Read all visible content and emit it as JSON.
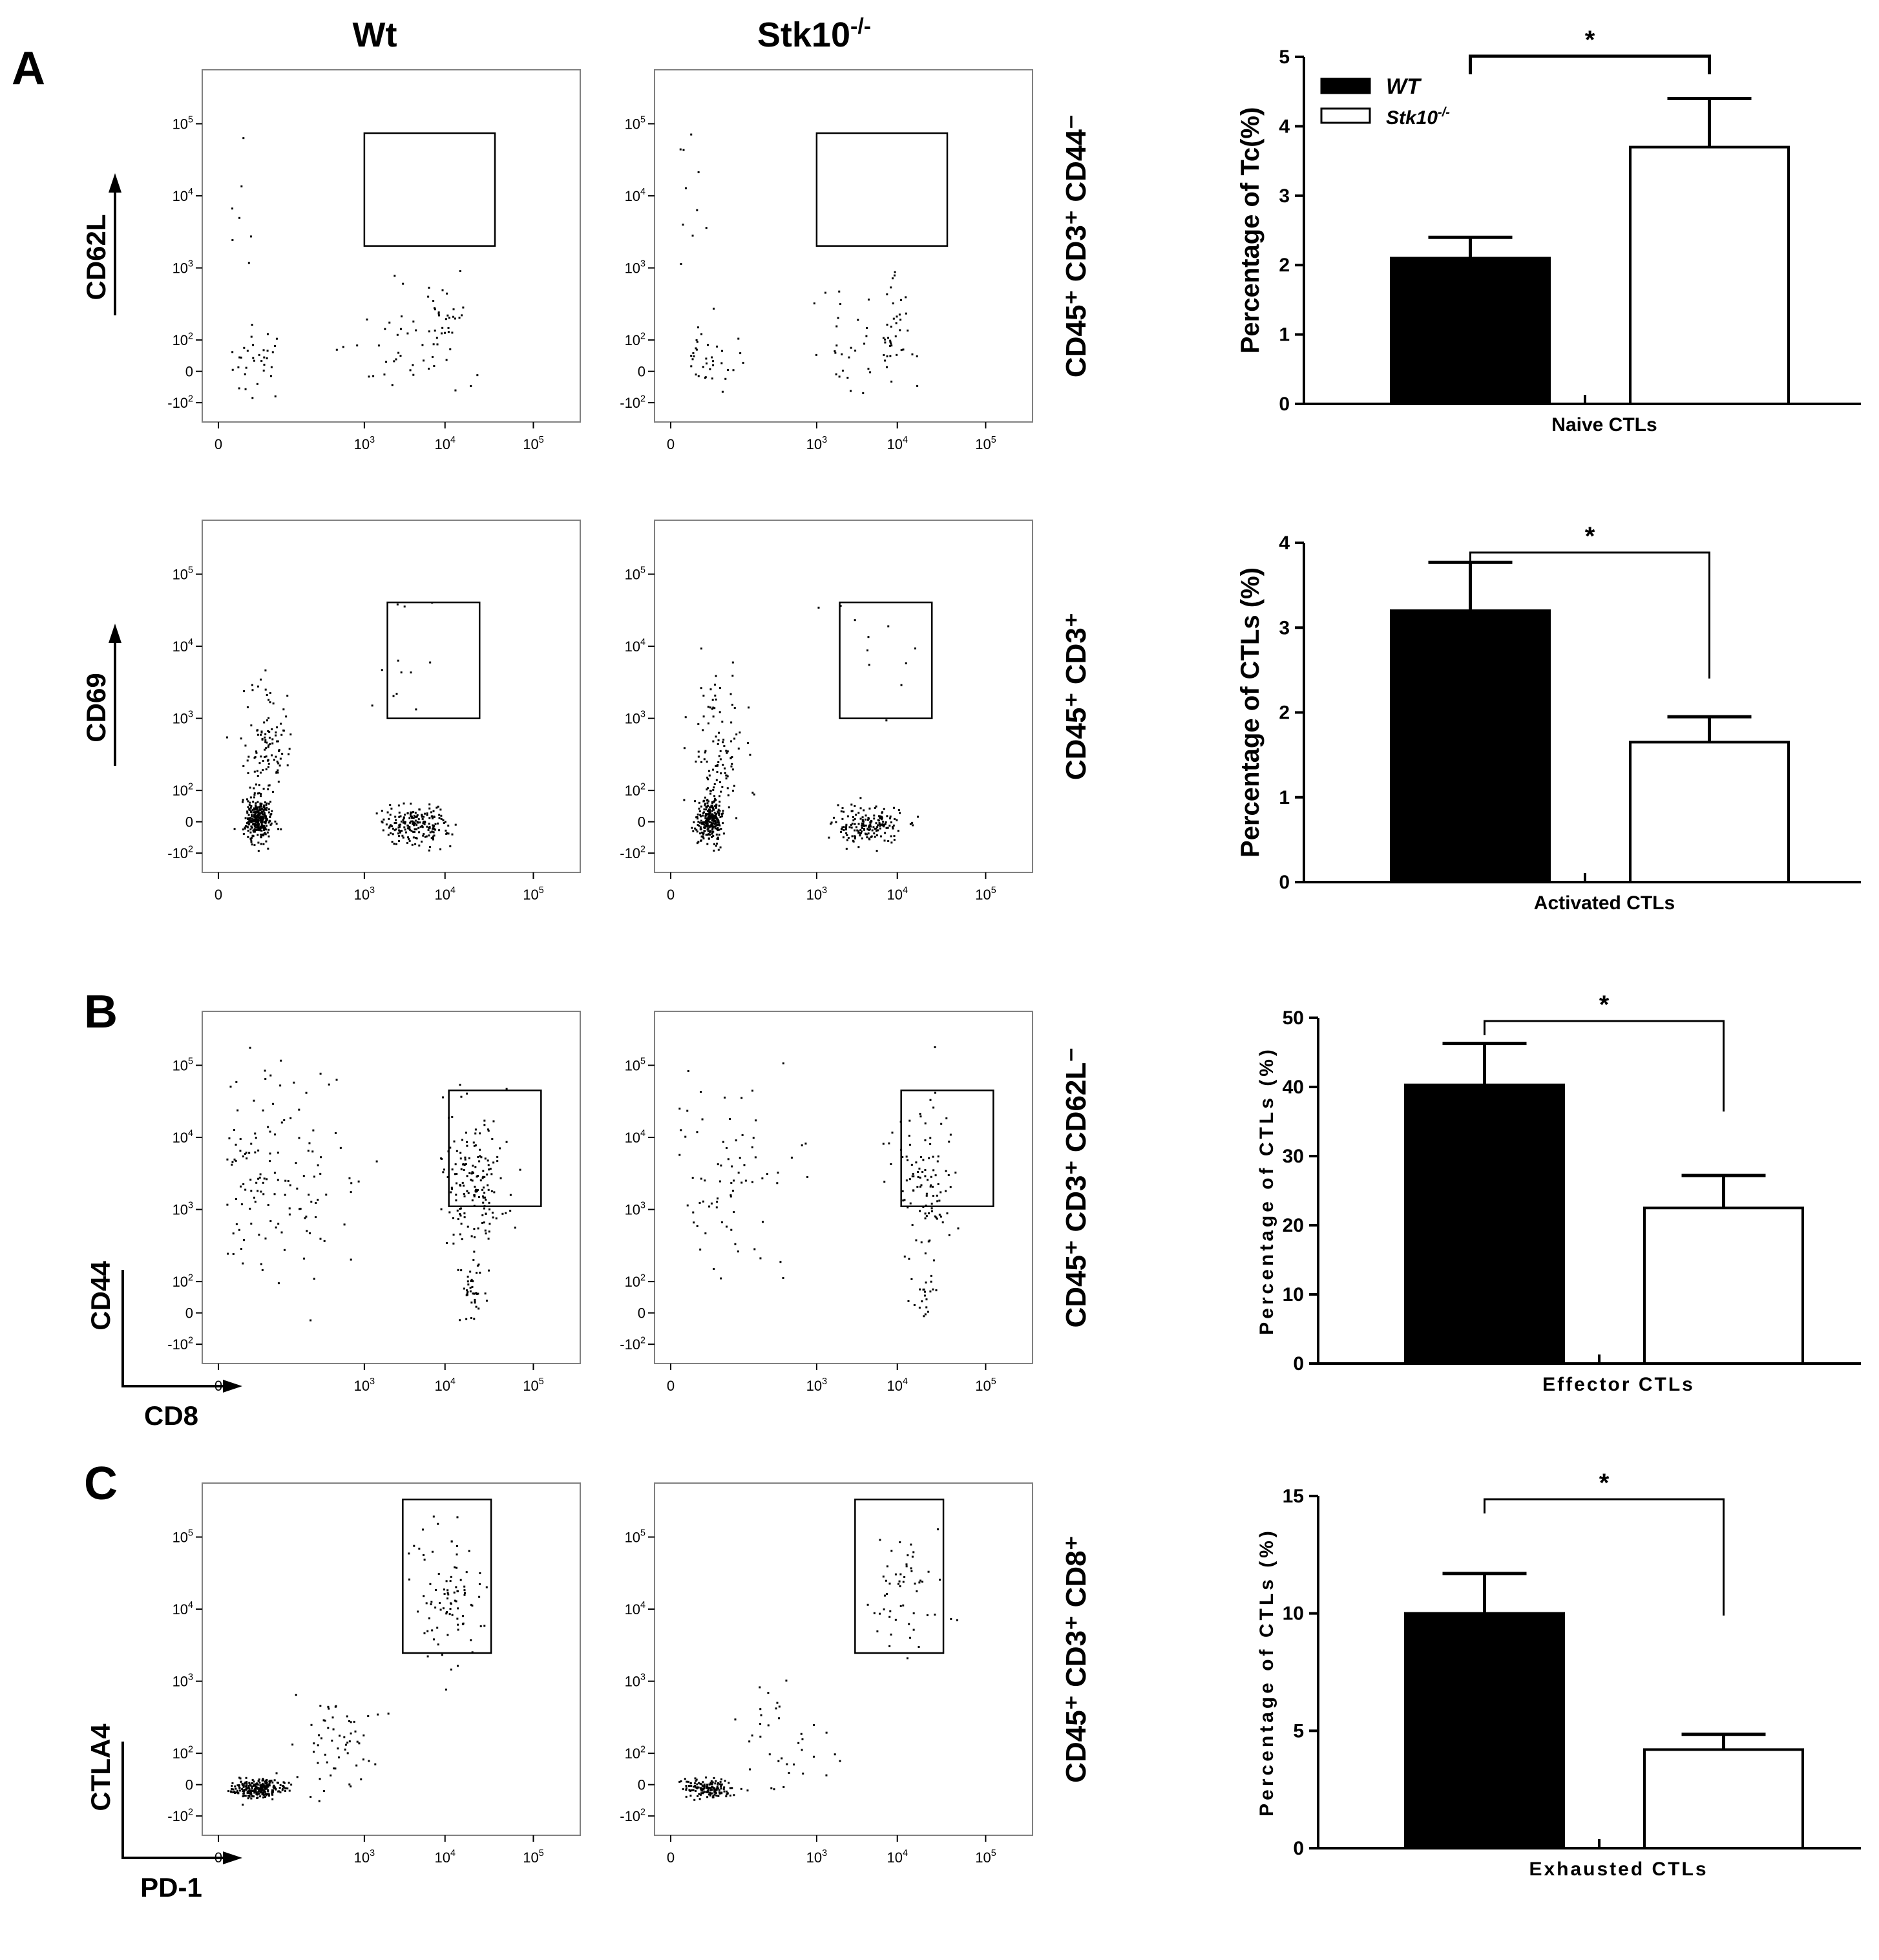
{
  "panels": [
    "A",
    "B",
    "C"
  ],
  "column_titles": {
    "wt": "Wt",
    "ko_base": "Stk10",
    "ko_sup": "-/-"
  },
  "flow_ticks": {
    "x": [
      {
        "base": "0",
        "sup": ""
      },
      {
        "base": "10",
        "sup": "3"
      },
      {
        "base": "10",
        "sup": "4"
      },
      {
        "base": "10",
        "sup": "5"
      }
    ],
    "y": [
      {
        "base": "-10",
        "sup": "2"
      },
      {
        "base": "0",
        "sup": ""
      },
      {
        "base": "10",
        "sup": "2"
      },
      {
        "base": "10",
        "sup": "3"
      },
      {
        "base": "10",
        "sup": "4"
      },
      {
        "base": "10",
        "sup": "5"
      }
    ]
  },
  "flow_rows": [
    {
      "ylabel": "CD62L",
      "xlabel": "",
      "gate_label": "CD45⁺ CD3⁺ CD44⁻",
      "gate": {
        "x0": 1.9,
        "x1": 3.6,
        "y0": 2.55,
        "y1": 4.35
      },
      "wt_density": "sparse",
      "ko_density": "sparse"
    },
    {
      "ylabel": "CD69",
      "xlabel": "",
      "gate_label": "CD45⁺ CD3⁺",
      "gate": {
        "x0": 2.2,
        "x1": 3.4,
        "y0": 2.2,
        "y1": 4.05
      },
      "wt_density": "dense",
      "ko_density": "dense"
    },
    {
      "ylabel": "CD44",
      "xlabel": "CD8",
      "gate_label": "CD45⁺ CD3⁺ CD62L⁻",
      "gate": {
        "x0": 3.0,
        "x1": 4.2,
        "y0": 2.25,
        "y1": 4.1
      },
      "wt_density": "medium",
      "ko_density": "medium"
    },
    {
      "ylabel": "CTLA4",
      "xlabel": "PD-1",
      "gate_label": "CD45⁺ CD3⁺ CD8⁺",
      "gate": {
        "x0": 2.4,
        "x1": 3.55,
        "y0": 2.65,
        "y1": 5.1
      },
      "wt_density": "medium",
      "ko_density": "sparse"
    }
  ],
  "legend": {
    "wt": "WT",
    "ko_base": "Stk10",
    "ko_sup": "-/-",
    "wt_color": "#000000",
    "ko_color": "#ffffff"
  },
  "chart_data": [
    {
      "type": "bar",
      "categories": [
        "WT",
        "Stk10-/-"
      ],
      "values": [
        2.1,
        3.7
      ],
      "errors": [
        0.3,
        0.7
      ],
      "xlabel": "Naive CTLs",
      "ylabel": "Percentage of Tc(%)",
      "ylim": [
        0,
        5
      ],
      "ticks": [
        0,
        1,
        2,
        3,
        4,
        5
      ],
      "significance": "*",
      "legend": "top-left"
    },
    {
      "type": "bar",
      "categories": [
        "WT",
        "Stk10-/-"
      ],
      "values": [
        3.2,
        1.65
      ],
      "errors": [
        0.57,
        0.3
      ],
      "xlabel": "Activated CTLs",
      "ylabel": "Percentage of CTLs (%)",
      "ylim": [
        0,
        4
      ],
      "ticks": [
        0,
        1,
        2,
        3,
        4
      ],
      "significance": "*"
    },
    {
      "type": "bar",
      "categories": [
        "WT",
        "Stk10-/-"
      ],
      "values": [
        40.3,
        22.5
      ],
      "errors": [
        6.0,
        4.7
      ],
      "xlabel": "Effector CTLs",
      "ylabel": "Percentage of CTLs (%)",
      "ylim": [
        0,
        50
      ],
      "ticks": [
        0,
        10,
        20,
        30,
        40,
        50
      ],
      "significance": "*"
    },
    {
      "type": "bar",
      "categories": [
        "WT",
        "Stk10-/-"
      ],
      "values": [
        10.0,
        4.2
      ],
      "errors": [
        1.7,
        0.65
      ],
      "xlabel": "Exhausted CTLs",
      "ylabel": "Percentage of CTLs (%)",
      "ylim": [
        0,
        15
      ],
      "ticks": [
        0,
        5,
        10,
        15
      ],
      "significance": "*"
    }
  ]
}
